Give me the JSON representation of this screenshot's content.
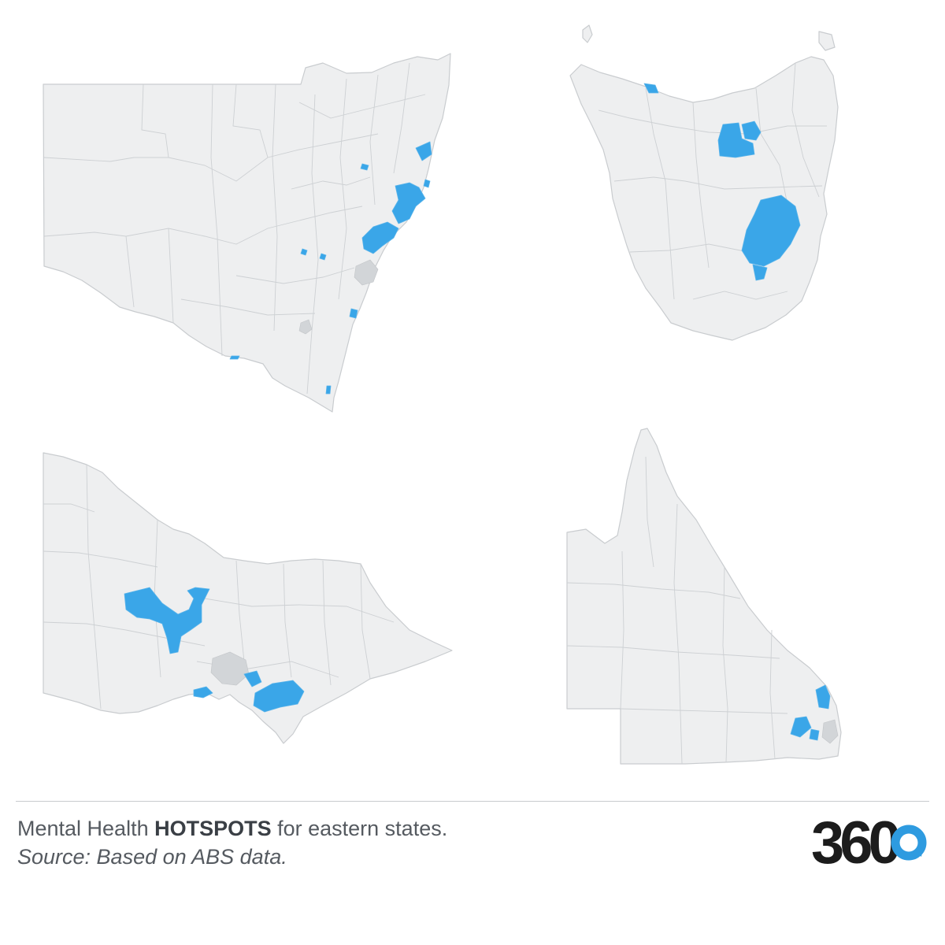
{
  "caption": {
    "prefix": "Mental Health ",
    "emphasis": "HOTSPOTS",
    "suffix": " for eastern states.",
    "source": "Source: Based on ABS data."
  },
  "logo": {
    "text": "360"
  },
  "colors": {
    "hotspot": "#3aa6e8",
    "land": "#eeeff0",
    "boundary": "#c9cccf",
    "logo_dark": "#1c1c1c",
    "logo_accent": "#2e9be0"
  },
  "icons": {
    "logo": "360-logo-icon"
  }
}
